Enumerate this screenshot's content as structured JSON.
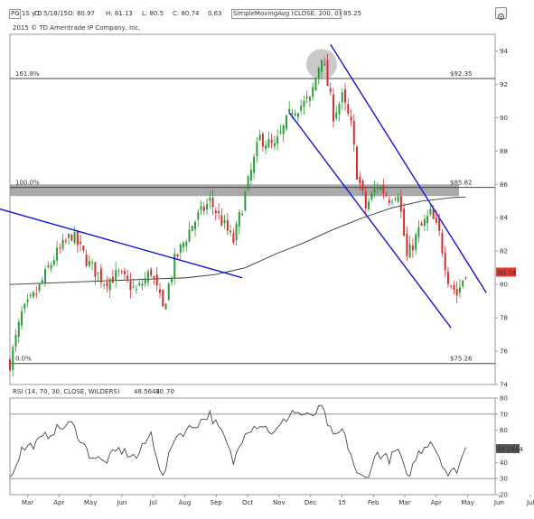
{
  "header": {
    "symbol": "PG 1S y D",
    "date_label": "D: 5/18/15",
    "open_label": "O: 80.97",
    "high_label": "H: 81.13",
    "low_label": "L: 80.5",
    "close_label": "C: 80.74",
    "change_label": "0.63",
    "indicator_label": "SimpleMovingAvg (CLOSE, 200, 0)",
    "indicator_value": "85.25",
    "copyright": "2015 © TD Ameritrade IP Company, Inc."
  },
  "chart_data": [
    {
      "type": "candlestick",
      "title": "",
      "ylim": [
        74,
        95
      ],
      "y_ticks": [
        74,
        76,
        78,
        80,
        82,
        84,
        86,
        88,
        90,
        92,
        94
      ],
      "x_ticks": [
        "Mar",
        "Apr",
        "May",
        "Jun",
        "Jul",
        "Aug",
        "Sep",
        "Oct",
        "Nov",
        "Dec",
        "15",
        "Feb",
        "Mar",
        "Apr",
        "May",
        "Jun",
        "Jul"
      ],
      "last_price": "80.74",
      "last_price_color": "#e8362e",
      "levels": [
        {
          "label": "161.8%",
          "value_label": "$92.35",
          "value": 92.35
        },
        {
          "label": "100.0%",
          "value_label": "$85.82",
          "value": 85.82
        },
        {
          "label": "0.0%",
          "value_label": "$75.26",
          "value": 75.26
        }
      ],
      "close_path": [
        {
          "t": 0,
          "y": 75.3
        },
        {
          "t": 8,
          "y": 78.2
        },
        {
          "t": 18,
          "y": 79.5
        },
        {
          "t": 30,
          "y": 81.6
        },
        {
          "t": 42,
          "y": 83.0
        },
        {
          "t": 54,
          "y": 81.2
        },
        {
          "t": 64,
          "y": 80.2
        },
        {
          "t": 74,
          "y": 80.6
        },
        {
          "t": 86,
          "y": 79.6
        },
        {
          "t": 96,
          "y": 80.8
        },
        {
          "t": 104,
          "y": 78.5
        },
        {
          "t": 112,
          "y": 81.4
        },
        {
          "t": 124,
          "y": 83.6
        },
        {
          "t": 136,
          "y": 85.0
        },
        {
          "t": 146,
          "y": 83.5
        },
        {
          "t": 152,
          "y": 82.6
        },
        {
          "t": 160,
          "y": 85.4
        },
        {
          "t": 170,
          "y": 88.8
        },
        {
          "t": 180,
          "y": 88.2
        },
        {
          "t": 192,
          "y": 90.5
        },
        {
          "t": 204,
          "y": 91.0
        },
        {
          "t": 212,
          "y": 93.8
        },
        {
          "t": 220,
          "y": 90.2
        },
        {
          "t": 226,
          "y": 91.2
        },
        {
          "t": 232,
          "y": 89.5
        },
        {
          "t": 236,
          "y": 86.7
        },
        {
          "t": 242,
          "y": 84.6
        },
        {
          "t": 250,
          "y": 86.0
        },
        {
          "t": 258,
          "y": 85.2
        },
        {
          "t": 264,
          "y": 85.6
        },
        {
          "t": 270,
          "y": 81.6
        },
        {
          "t": 278,
          "y": 83.2
        },
        {
          "t": 286,
          "y": 84.2
        },
        {
          "t": 292,
          "y": 83.0
        },
        {
          "t": 298,
          "y": 80.4
        },
        {
          "t": 304,
          "y": 79.4
        },
        {
          "t": 310,
          "y": 80.8
        }
      ],
      "sma": {
        "name": "SimpleMovingAvg (CLOSE, 200, 0)",
        "points": [
          {
            "t": 0,
            "y": 80.0
          },
          {
            "t": 30,
            "y": 80.1
          },
          {
            "t": 60,
            "y": 80.2
          },
          {
            "t": 90,
            "y": 80.3
          },
          {
            "t": 120,
            "y": 80.4
          },
          {
            "t": 140,
            "y": 80.6
          },
          {
            "t": 160,
            "y": 81.0
          },
          {
            "t": 180,
            "y": 81.8
          },
          {
            "t": 200,
            "y": 82.5
          },
          {
            "t": 220,
            "y": 83.3
          },
          {
            "t": 240,
            "y": 84.0
          },
          {
            "t": 260,
            "y": 84.6
          },
          {
            "t": 280,
            "y": 85.0
          },
          {
            "t": 300,
            "y": 85.2
          },
          {
            "t": 310,
            "y": 85.25
          }
        ]
      },
      "trendlines": [
        {
          "t1": -10,
          "y1": 84.6,
          "t2": 158,
          "y2": 80.4
        },
        {
          "t1": 190,
          "y1": 90.3,
          "t2": 300,
          "y2": 77.4
        },
        {
          "t1": 218,
          "y1": 94.4,
          "t2": 324,
          "y2": 79.5
        }
      ],
      "resistance_band": [
        85.3,
        86.0
      ],
      "highlight": {
        "t": 212,
        "y": 93.2
      }
    },
    {
      "type": "line",
      "title": "RSI (14, 70, 30, CLOSE, WILDERS)",
      "legend": [
        "48.5644",
        "30",
        "70"
      ],
      "ylim": [
        20,
        80
      ],
      "y_ticks": [
        20,
        30,
        40,
        50,
        60,
        70,
        80
      ],
      "last_value": "48.5644",
      "levels": [
        30,
        70
      ],
      "path": [
        {
          "t": 0,
          "y": 30
        },
        {
          "t": 8,
          "y": 48
        },
        {
          "t": 18,
          "y": 52
        },
        {
          "t": 30,
          "y": 60
        },
        {
          "t": 42,
          "y": 64
        },
        {
          "t": 54,
          "y": 45
        },
        {
          "t": 64,
          "y": 40
        },
        {
          "t": 74,
          "y": 48
        },
        {
          "t": 86,
          "y": 43
        },
        {
          "t": 96,
          "y": 58
        },
        {
          "t": 104,
          "y": 30
        },
        {
          "t": 112,
          "y": 56
        },
        {
          "t": 124,
          "y": 62
        },
        {
          "t": 136,
          "y": 70
        },
        {
          "t": 146,
          "y": 55
        },
        {
          "t": 152,
          "y": 40
        },
        {
          "t": 160,
          "y": 60
        },
        {
          "t": 170,
          "y": 64
        },
        {
          "t": 180,
          "y": 58
        },
        {
          "t": 192,
          "y": 72
        },
        {
          "t": 204,
          "y": 68
        },
        {
          "t": 212,
          "y": 74
        },
        {
          "t": 220,
          "y": 55
        },
        {
          "t": 226,
          "y": 60
        },
        {
          "t": 232,
          "y": 45
        },
        {
          "t": 236,
          "y": 32
        },
        {
          "t": 242,
          "y": 30
        },
        {
          "t": 250,
          "y": 46
        },
        {
          "t": 258,
          "y": 42
        },
        {
          "t": 264,
          "y": 48
        },
        {
          "t": 270,
          "y": 30
        },
        {
          "t": 278,
          "y": 46
        },
        {
          "t": 286,
          "y": 54
        },
        {
          "t": 292,
          "y": 44
        },
        {
          "t": 298,
          "y": 32
        },
        {
          "t": 304,
          "y": 36
        },
        {
          "t": 310,
          "y": 48.6
        }
      ]
    }
  ]
}
